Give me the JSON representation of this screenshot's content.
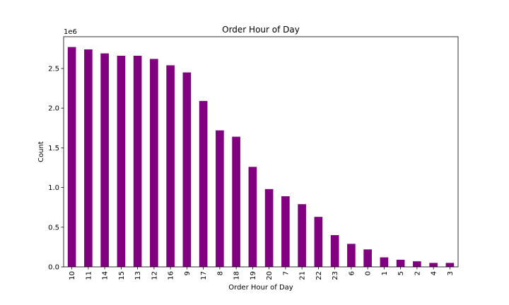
{
  "chart_data": {
    "type": "bar",
    "title": "Order Hour of Day",
    "xlabel": "Order Hour of Day",
    "ylabel": "Count",
    "y_multiplier_label": "1e6",
    "ylim": [
      0,
      2.9
    ],
    "y_ticks": [
      0.0,
      0.5,
      1.0,
      1.5,
      2.0,
      2.5
    ],
    "y_tick_labels": [
      "0.0",
      "0.5",
      "1.0",
      "1.5",
      "2.0",
      "2.5"
    ],
    "bar_color": "#800080",
    "grid": false,
    "categories": [
      "10",
      "11",
      "14",
      "15",
      "13",
      "12",
      "16",
      "9",
      "17",
      "8",
      "18",
      "19",
      "20",
      "7",
      "21",
      "22",
      "23",
      "6",
      "0",
      "1",
      "5",
      "2",
      "4",
      "3"
    ],
    "values": [
      2.77,
      2.74,
      2.69,
      2.66,
      2.66,
      2.62,
      2.54,
      2.45,
      2.09,
      1.72,
      1.64,
      1.26,
      0.98,
      0.89,
      0.79,
      0.63,
      0.4,
      0.29,
      0.22,
      0.12,
      0.09,
      0.07,
      0.05,
      0.05
    ]
  }
}
